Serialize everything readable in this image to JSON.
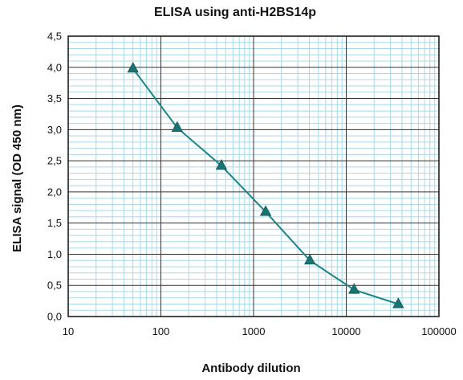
{
  "chart_data": {
    "type": "line",
    "title": "ELISA using anti-H2BS14p",
    "xlabel": "Antibody dilution",
    "ylabel": "ELISA signal (OD 450 nm)",
    "xscale": "log",
    "xlim": [
      10,
      100000
    ],
    "ylim": [
      0,
      4.5
    ],
    "x_ticks": [
      10,
      100,
      1000,
      10000,
      100000
    ],
    "x_tick_labels": [
      "10",
      "100",
      "1000",
      "10000",
      "100000"
    ],
    "y_ticks": [
      0,
      0.5,
      1,
      1.5,
      2,
      2.5,
      3,
      3.5,
      4,
      4.5
    ],
    "y_tick_labels": [
      "0,0",
      "0,5",
      "1,0",
      "1,5",
      "2,0",
      "2,5",
      "3,0",
      "3,5",
      "4,0",
      "4,5"
    ],
    "grid": true,
    "legend": "none",
    "series": [
      {
        "x": [
          50,
          150,
          450,
          1350,
          4050,
          12150,
          36450
        ],
        "y": [
          3.98,
          3.03,
          2.42,
          1.68,
          0.9,
          0.43,
          0.2
        ]
      }
    ],
    "colors": {
      "line": "#1b8585",
      "marker": "#1b7272",
      "major_grid": "#333333",
      "minor_grid": "#a8d8ea",
      "axis": "#111111"
    }
  }
}
